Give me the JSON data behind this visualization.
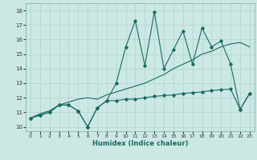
{
  "xlabel": "Humidex (Indice chaleur)",
  "x": [
    0,
    1,
    2,
    3,
    4,
    5,
    6,
    7,
    8,
    9,
    10,
    11,
    12,
    13,
    14,
    15,
    16,
    17,
    18,
    19,
    20,
    21,
    22,
    23
  ],
  "line_jagged": [
    10.6,
    10.8,
    11.0,
    11.5,
    11.5,
    11.1,
    10.0,
    11.3,
    11.8,
    13.0,
    15.5,
    17.3,
    14.2,
    17.9,
    14.0,
    15.3,
    16.6,
    14.3,
    16.8,
    15.5,
    15.9,
    14.3,
    11.2,
    12.3
  ],
  "line_smooth": [
    10.6,
    10.8,
    11.0,
    11.5,
    11.5,
    11.1,
    10.0,
    11.3,
    11.8,
    11.8,
    11.9,
    11.9,
    12.0,
    12.1,
    12.15,
    12.2,
    12.3,
    12.35,
    12.4,
    12.5,
    12.55,
    12.6,
    11.2,
    12.3
  ],
  "line_regression": [
    10.6,
    10.9,
    11.1,
    11.5,
    11.7,
    11.9,
    12.0,
    11.9,
    12.2,
    12.4,
    12.6,
    12.8,
    13.0,
    13.3,
    13.6,
    14.0,
    14.3,
    14.6,
    15.0,
    15.2,
    15.5,
    15.7,
    15.8,
    15.5
  ],
  "bg_color": "#cce8e5",
  "grid_color": "#b8d8d4",
  "line_color": "#1a6b5e",
  "ylim": [
    9.7,
    18.5
  ],
  "xlim": [
    -0.5,
    23.5
  ],
  "yticks": [
    10,
    11,
    12,
    13,
    14,
    15,
    16,
    17,
    18
  ],
  "xticks": [
    0,
    1,
    2,
    3,
    4,
    5,
    6,
    7,
    8,
    9,
    10,
    11,
    12,
    13,
    14,
    15,
    16,
    17,
    18,
    19,
    20,
    21,
    22,
    23
  ]
}
